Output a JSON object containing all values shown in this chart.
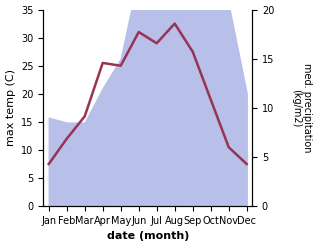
{
  "months": [
    "Jan",
    "Feb",
    "Mar",
    "Apr",
    "May",
    "Jun",
    "Jul",
    "Aug",
    "Sep",
    "Oct",
    "Nov",
    "Dec"
  ],
  "temperature": [
    7.5,
    12.0,
    16.0,
    25.5,
    25.0,
    31.0,
    29.0,
    32.5,
    27.5,
    19.0,
    10.5,
    7.5
  ],
  "precipitation_mm": [
    9.0,
    8.5,
    8.5,
    12.0,
    15.0,
    23.5,
    24.0,
    23.5,
    20.5,
    20.5,
    20.5,
    11.5
  ],
  "temp_ylim": [
    0,
    35
  ],
  "precip_ylim": [
    0,
    20
  ],
  "temp_color": "#993355",
  "precip_fill_color": "#b8bfe8",
  "xlabel": "date (month)",
  "ylabel_left": "max temp (C)",
  "ylabel_right": "med. precipitation\n(kg/m2)",
  "label_fontsize": 8,
  "tick_fontsize": 7,
  "linewidth": 1.8
}
